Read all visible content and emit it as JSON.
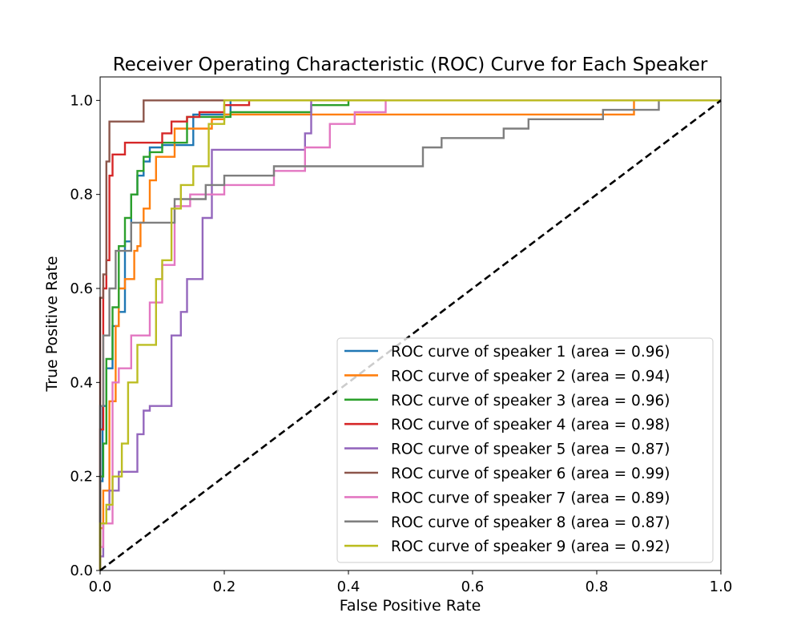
{
  "chart_data": {
    "type": "line",
    "title": "Receiver Operating Characteristic (ROC) Curve for Each Speaker",
    "xlabel": "False Positive Rate",
    "ylabel": "True Positive Rate",
    "xlim": [
      0.0,
      1.0
    ],
    "ylim": [
      0.0,
      1.05
    ],
    "xticks": [
      "0.0",
      "0.2",
      "0.4",
      "0.6",
      "0.8",
      "1.0"
    ],
    "yticks": [
      "0.0",
      "0.2",
      "0.4",
      "0.6",
      "0.8",
      "1.0"
    ],
    "grid": false,
    "legend_position": "lower-right",
    "reference_line": {
      "x": [
        0,
        1
      ],
      "y": [
        0,
        1
      ],
      "color": "#000000",
      "style": "dashed"
    },
    "series": [
      {
        "name": "ROC curve of speaker 1 (area = 0.96)",
        "color": "#1f77b4",
        "x": [
          0,
          0,
          0.004,
          0.004,
          0.01,
          0.01,
          0.02,
          0.02,
          0.03,
          0.03,
          0.04,
          0.04,
          0.05,
          0.05,
          0.06,
          0.06,
          0.07,
          0.07,
          0.08,
          0.08,
          0.1,
          0.1,
          0.15,
          0.15,
          0.21,
          0.21,
          1.0
        ],
        "y": [
          0,
          0.19,
          0.19,
          0.35,
          0.35,
          0.43,
          0.43,
          0.52,
          0.52,
          0.55,
          0.55,
          0.7,
          0.7,
          0.8,
          0.8,
          0.84,
          0.84,
          0.87,
          0.87,
          0.9,
          0.9,
          0.905,
          0.905,
          0.97,
          0.97,
          1.0,
          1.0
        ]
      },
      {
        "name": "ROC curve of speaker 2 (area = 0.94)",
        "color": "#ff7f0e",
        "x": [
          0,
          0,
          0.005,
          0.005,
          0.015,
          0.015,
          0.025,
          0.025,
          0.03,
          0.03,
          0.04,
          0.04,
          0.055,
          0.055,
          0.06,
          0.06,
          0.065,
          0.065,
          0.07,
          0.07,
          0.08,
          0.08,
          0.09,
          0.09,
          0.12,
          0.12,
          0.18,
          0.18,
          0.2,
          0.2,
          0.86,
          0.86,
          1.0
        ],
        "y": [
          0,
          0.09,
          0.09,
          0.17,
          0.17,
          0.36,
          0.36,
          0.52,
          0.52,
          0.6,
          0.6,
          0.62,
          0.62,
          0.68,
          0.68,
          0.69,
          0.69,
          0.74,
          0.74,
          0.77,
          0.77,
          0.83,
          0.83,
          0.88,
          0.88,
          0.94,
          0.94,
          0.96,
          0.96,
          0.97,
          0.97,
          1.0,
          1.0
        ]
      },
      {
        "name": "ROC curve of speaker 3 (area = 0.96)",
        "color": "#2ca02c",
        "x": [
          0,
          0,
          0.005,
          0.005,
          0.01,
          0.01,
          0.02,
          0.02,
          0.03,
          0.03,
          0.04,
          0.04,
          0.05,
          0.05,
          0.06,
          0.06,
          0.07,
          0.07,
          0.08,
          0.08,
          0.1,
          0.1,
          0.14,
          0.14,
          0.21,
          0.21,
          0.34,
          0.34,
          0.4,
          0.4,
          1.0
        ],
        "y": [
          0,
          0.2,
          0.2,
          0.27,
          0.27,
          0.45,
          0.45,
          0.56,
          0.56,
          0.69,
          0.69,
          0.75,
          0.75,
          0.8,
          0.8,
          0.85,
          0.85,
          0.88,
          0.88,
          0.89,
          0.89,
          0.91,
          0.91,
          0.965,
          0.965,
          0.975,
          0.975,
          0.99,
          0.99,
          1.0,
          1.0
        ]
      },
      {
        "name": "ROC curve of speaker 4 (area = 0.98)",
        "color": "#d62728",
        "x": [
          0,
          0,
          0.005,
          0.005,
          0.01,
          0.01,
          0.015,
          0.015,
          0.02,
          0.02,
          0.04,
          0.04,
          0.1,
          0.1,
          0.115,
          0.115,
          0.14,
          0.14,
          0.16,
          0.16,
          0.2,
          0.2,
          0.24,
          0.24,
          1.0
        ],
        "y": [
          0,
          0.3,
          0.3,
          0.6,
          0.6,
          0.66,
          0.66,
          0.84,
          0.84,
          0.885,
          0.885,
          0.91,
          0.91,
          0.93,
          0.93,
          0.955,
          0.955,
          0.965,
          0.965,
          0.975,
          0.975,
          0.99,
          0.99,
          1.0,
          1.0
        ]
      },
      {
        "name": "ROC curve of speaker 5 (area = 0.87)",
        "color": "#9467bd",
        "x": [
          0,
          0,
          0.005,
          0.005,
          0.01,
          0.01,
          0.015,
          0.015,
          0.03,
          0.03,
          0.06,
          0.06,
          0.07,
          0.07,
          0.08,
          0.08,
          0.115,
          0.115,
          0.13,
          0.13,
          0.14,
          0.14,
          0.165,
          0.165,
          0.18,
          0.18,
          0.33,
          0.33,
          0.34,
          0.34,
          1.0
        ],
        "y": [
          0,
          0.03,
          0.03,
          0.1,
          0.1,
          0.13,
          0.13,
          0.17,
          0.17,
          0.21,
          0.21,
          0.29,
          0.29,
          0.34,
          0.34,
          0.35,
          0.35,
          0.5,
          0.5,
          0.55,
          0.55,
          0.62,
          0.62,
          0.75,
          0.75,
          0.895,
          0.895,
          0.93,
          0.93,
          1.0,
          1.0
        ]
      },
      {
        "name": "ROC curve of speaker 6 (area = 0.99)",
        "color": "#8c564b",
        "x": [
          0,
          0,
          0.005,
          0.005,
          0.01,
          0.01,
          0.015,
          0.015,
          0.07,
          0.07,
          1.0
        ],
        "y": [
          0,
          0.58,
          0.58,
          0.63,
          0.63,
          0.87,
          0.87,
          0.955,
          0.955,
          1.0,
          1.0
        ]
      },
      {
        "name": "ROC curve of speaker 7 (area = 0.89)",
        "color": "#e377c2",
        "x": [
          0,
          0,
          0.005,
          0.005,
          0.02,
          0.02,
          0.03,
          0.03,
          0.05,
          0.05,
          0.08,
          0.08,
          0.1,
          0.1,
          0.12,
          0.12,
          0.145,
          0.145,
          0.2,
          0.2,
          0.28,
          0.28,
          0.33,
          0.33,
          0.37,
          0.37,
          0.41,
          0.41,
          0.46,
          0.46,
          1.0
        ],
        "y": [
          0,
          0.05,
          0.05,
          0.1,
          0.1,
          0.4,
          0.4,
          0.43,
          0.43,
          0.5,
          0.5,
          0.57,
          0.57,
          0.65,
          0.65,
          0.775,
          0.775,
          0.8,
          0.8,
          0.82,
          0.82,
          0.85,
          0.85,
          0.9,
          0.9,
          0.95,
          0.95,
          0.975,
          0.975,
          1.0,
          1.0
        ]
      },
      {
        "name": "ROC curve of speaker 8 (area = 0.87)",
        "color": "#7f7f7f",
        "x": [
          0,
          0,
          0.005,
          0.005,
          0.015,
          0.015,
          0.025,
          0.025,
          0.05,
          0.05,
          0.08,
          0.08,
          0.12,
          0.12,
          0.17,
          0.17,
          0.2,
          0.2,
          0.28,
          0.28,
          0.52,
          0.52,
          0.55,
          0.55,
          0.65,
          0.65,
          0.69,
          0.69,
          0.81,
          0.81,
          0.9,
          0.9,
          1.0
        ],
        "y": [
          0,
          0.35,
          0.35,
          0.5,
          0.5,
          0.6,
          0.6,
          0.68,
          0.68,
          0.74,
          0.74,
          0.74,
          0.74,
          0.79,
          0.79,
          0.82,
          0.82,
          0.84,
          0.84,
          0.86,
          0.86,
          0.9,
          0.9,
          0.92,
          0.92,
          0.94,
          0.94,
          0.96,
          0.96,
          0.98,
          0.98,
          1.0,
          1.0
        ]
      },
      {
        "name": "ROC curve of speaker 9 (area = 0.92)",
        "color": "#bcbd22",
        "x": [
          0,
          0,
          0.01,
          0.01,
          0.02,
          0.02,
          0.035,
          0.035,
          0.045,
          0.045,
          0.06,
          0.06,
          0.09,
          0.09,
          0.1,
          0.1,
          0.115,
          0.115,
          0.13,
          0.13,
          0.15,
          0.15,
          0.175,
          0.175,
          0.2,
          0.2,
          1.0
        ],
        "y": [
          0,
          0.1,
          0.1,
          0.14,
          0.14,
          0.2,
          0.2,
          0.27,
          0.27,
          0.4,
          0.4,
          0.48,
          0.48,
          0.62,
          0.62,
          0.66,
          0.66,
          0.77,
          0.77,
          0.82,
          0.82,
          0.86,
          0.86,
          0.95,
          0.95,
          1.0,
          1.0
        ]
      }
    ]
  }
}
